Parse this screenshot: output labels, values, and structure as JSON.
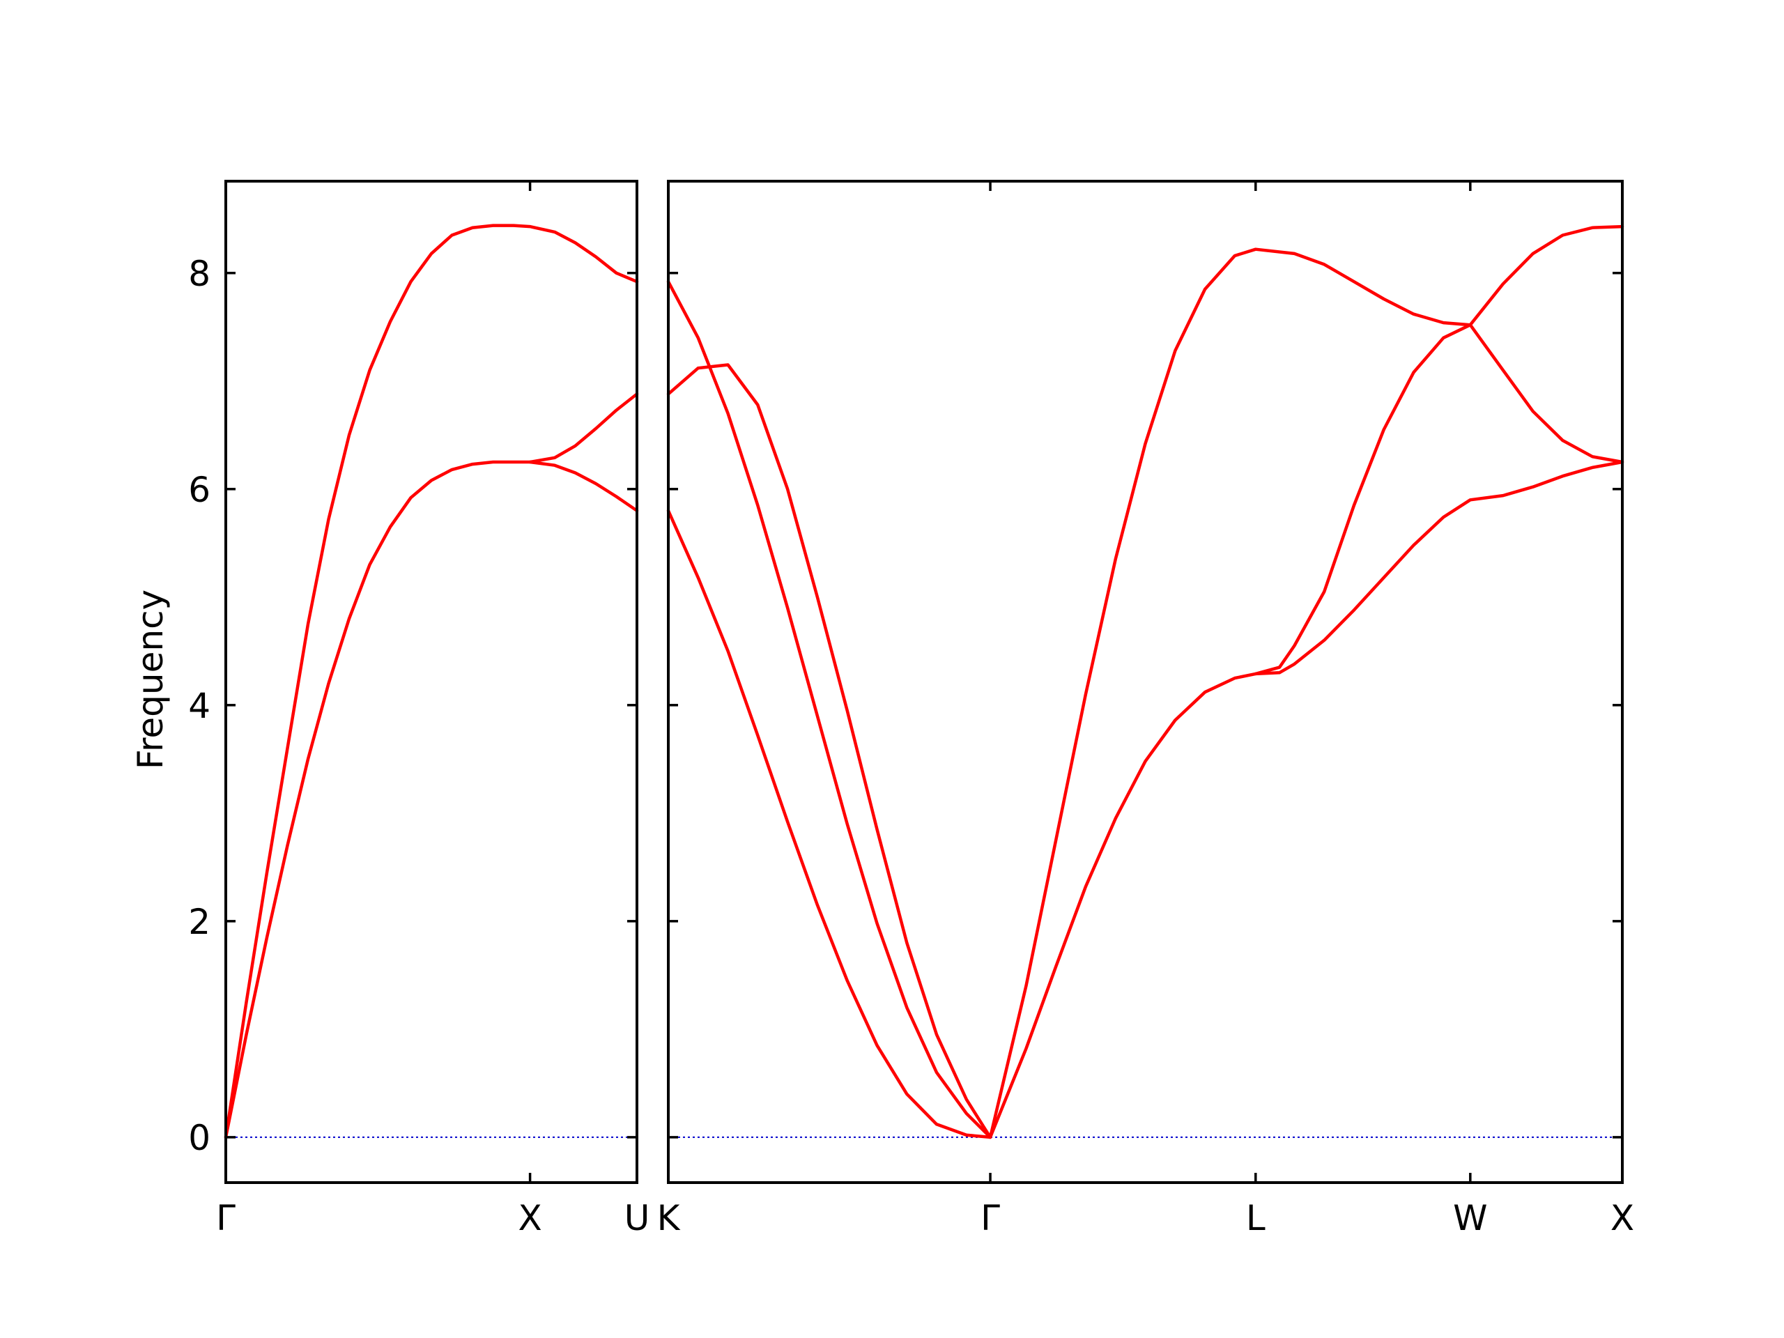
{
  "chart_data": {
    "type": "line",
    "title": "",
    "ylabel": "Frequency",
    "xlabel": "",
    "ylim": [
      -0.42,
      8.85
    ],
    "yticks": [
      0,
      2,
      4,
      6,
      8
    ],
    "grid": false,
    "line_color": "#ff0000",
    "zero_line_color": "#0000cc",
    "panels": [
      {
        "xlim": [
          0,
          1.0
        ],
        "xticks": [
          {
            "x": 0,
            "label": "Γ"
          },
          {
            "x": 0.74,
            "label": "X"
          },
          {
            "x": 1.0,
            "label": "U"
          }
        ],
        "series": [
          {
            "x": [
              0,
              0.05,
              0.1,
              0.15,
              0.2,
              0.25,
              0.3,
              0.35,
              0.4,
              0.45,
              0.5,
              0.55,
              0.6,
              0.65,
              0.7,
              0.74,
              0.8,
              0.85,
              0.9,
              0.95,
              1.0
            ],
            "values": [
              0,
              1.25,
              2.45,
              3.6,
              4.75,
              5.72,
              6.5,
              7.1,
              7.55,
              7.92,
              8.18,
              8.35,
              8.42,
              8.44,
              8.44,
              8.43,
              8.38,
              8.28,
              8.15,
              8.0,
              7.92
            ]
          },
          {
            "x": [
              0,
              0.05,
              0.1,
              0.15,
              0.2,
              0.25,
              0.3,
              0.35,
              0.4,
              0.45,
              0.5,
              0.55,
              0.6,
              0.65,
              0.7,
              0.74,
              0.8,
              0.85,
              0.9,
              0.95,
              1.0
            ],
            "values": [
              0,
              0.95,
              1.85,
              2.7,
              3.5,
              4.2,
              4.8,
              5.3,
              5.65,
              5.92,
              6.08,
              6.18,
              6.23,
              6.25,
              6.25,
              6.25,
              6.29,
              6.4,
              6.56,
              6.73,
              6.88
            ]
          },
          {
            "x": [
              0.74,
              0.8,
              0.85,
              0.9,
              0.95,
              1.0
            ],
            "values": [
              6.25,
              6.22,
              6.15,
              6.05,
              5.93,
              5.8
            ]
          }
        ]
      },
      {
        "xlim": [
          0,
          3.2
        ],
        "xticks": [
          {
            "x": 0,
            "label": "K"
          },
          {
            "x": 1.08,
            "label": "Γ"
          },
          {
            "x": 1.97,
            "label": "L"
          },
          {
            "x": 2.69,
            "label": "W"
          },
          {
            "x": 3.2,
            "label": "X"
          }
        ],
        "series": [
          {
            "x": [
              0,
              0.1,
              0.2,
              0.3,
              0.4,
              0.5,
              0.6,
              0.7,
              0.8,
              0.9,
              1.0,
              1.08
            ],
            "values": [
              7.92,
              7.4,
              6.7,
              5.85,
              4.9,
              3.9,
              2.9,
              1.98,
              1.2,
              0.6,
              0.22,
              0
            ]
          },
          {
            "x": [
              0,
              0.1,
              0.2,
              0.3,
              0.4,
              0.5,
              0.6,
              0.7,
              0.8,
              0.9,
              1.0,
              1.08
            ],
            "values": [
              6.88,
              7.12,
              7.15,
              6.78,
              6.0,
              5.0,
              3.95,
              2.85,
              1.8,
              0.95,
              0.35,
              0
            ]
          },
          {
            "x": [
              0,
              0.1,
              0.2,
              0.3,
              0.4,
              0.5,
              0.6,
              0.7,
              0.8,
              0.9,
              1.0,
              1.08
            ],
            "values": [
              5.8,
              5.18,
              4.5,
              3.72,
              2.92,
              2.15,
              1.45,
              0.85,
              0.4,
              0.12,
              0.02,
              0
            ]
          },
          {
            "x": [
              1.08,
              1.2,
              1.3,
              1.4,
              1.5,
              1.6,
              1.7,
              1.8,
              1.9,
              1.97,
              2.1,
              2.2,
              2.3,
              2.4,
              2.5,
              2.6,
              2.69,
              2.8,
              2.9,
              3.0,
              3.1,
              3.2
            ],
            "values": [
              0,
              1.4,
              2.75,
              4.1,
              5.35,
              6.42,
              7.28,
              7.85,
              8.16,
              8.22,
              8.18,
              8.08,
              7.92,
              7.76,
              7.62,
              7.54,
              7.52,
              7.9,
              8.18,
              8.35,
              8.42,
              8.43
            ]
          },
          {
            "x": [
              1.08,
              1.2,
              1.3,
              1.4,
              1.5,
              1.6,
              1.7,
              1.8,
              1.9,
              1.97,
              2.05,
              2.1,
              2.2,
              2.3,
              2.4,
              2.5,
              2.6,
              2.69
            ],
            "values": [
              0,
              0.82,
              1.58,
              2.32,
              2.95,
              3.48,
              3.86,
              4.12,
              4.25,
              4.29,
              4.35,
              4.55,
              5.05,
              5.85,
              6.55,
              7.08,
              7.4,
              7.52
            ]
          },
          {
            "x": [
              1.97,
              2.05,
              2.1,
              2.2,
              2.3,
              2.4,
              2.5,
              2.6,
              2.69,
              2.8,
              2.9,
              3.0,
              3.1,
              3.2
            ],
            "values": [
              4.29,
              4.3,
              4.38,
              4.6,
              4.88,
              5.18,
              5.48,
              5.74,
              5.9,
              5.94,
              6.02,
              6.12,
              6.2,
              6.25
            ]
          },
          {
            "x": [
              2.69,
              2.8,
              2.9,
              3.0,
              3.1,
              3.2
            ],
            "values": [
              7.52,
              7.1,
              6.72,
              6.45,
              6.3,
              6.25
            ]
          }
        ]
      }
    ]
  }
}
